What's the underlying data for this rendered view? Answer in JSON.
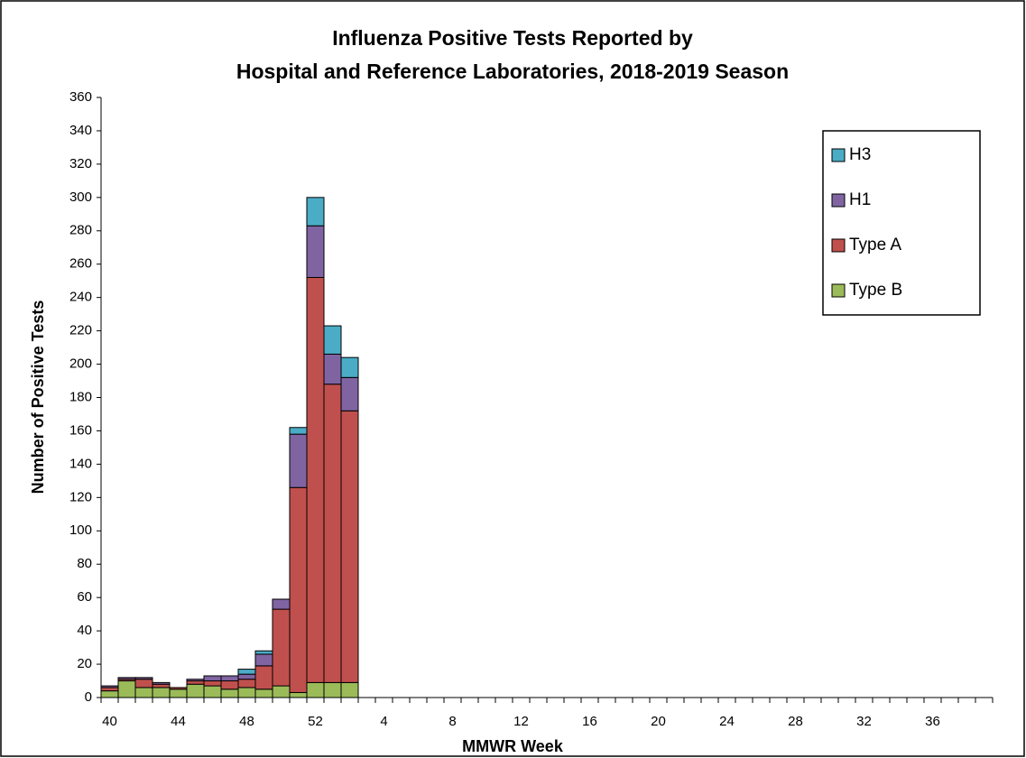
{
  "chart_data": {
    "type": "stacked_bar",
    "title": [
      "Influenza Positive Tests Reported by",
      "Hospital and Reference Laboratories, 2018-2019 Season"
    ],
    "x_label": "MMWR Week",
    "y_label": "Number of Positive Tests",
    "categories": [
      "40",
      null,
      null,
      null,
      "44",
      null,
      null,
      null,
      "48",
      null,
      null,
      null,
      "52",
      null,
      null,
      null,
      "4",
      null,
      null,
      null,
      "8",
      null,
      null,
      null,
      "12",
      null,
      null,
      null,
      "16",
      null,
      null,
      null,
      "20",
      null,
      null,
      null,
      "24",
      null,
      null,
      null,
      "28",
      null,
      null,
      null,
      "32",
      null,
      null,
      null,
      "36",
      null,
      null,
      null
    ],
    "series": [
      {
        "name": "Type B",
        "color": "#9bbb59",
        "values": [
          4,
          10,
          6,
          6,
          5,
          8,
          7,
          5,
          6,
          5,
          7,
          3,
          9,
          9,
          9,
          null,
          null,
          null,
          null,
          null,
          null,
          null,
          null,
          null,
          null,
          null,
          null,
          null,
          null,
          null,
          null,
          null,
          null,
          null,
          null,
          null,
          null,
          null,
          null,
          null,
          null,
          null,
          null,
          null,
          null,
          null,
          null,
          null,
          null,
          null,
          null,
          null
        ]
      },
      {
        "name": "Type A",
        "color": "#c0504d",
        "values": [
          2,
          1,
          5,
          2,
          1,
          2,
          3,
          5,
          5,
          14,
          46,
          123,
          243,
          179,
          163,
          null,
          null,
          null,
          null,
          null,
          null,
          null,
          null,
          null,
          null,
          null,
          null,
          null,
          null,
          null,
          null,
          null,
          null,
          null,
          null,
          null,
          null,
          null,
          null,
          null,
          null,
          null,
          null,
          null,
          null,
          null,
          null,
          null,
          null,
          null,
          null,
          null
        ]
      },
      {
        "name": "H1",
        "color": "#8064a2",
        "values": [
          1,
          1,
          1,
          1,
          0,
          1,
          3,
          3,
          3,
          7,
          6,
          32,
          31,
          18,
          20,
          null,
          null,
          null,
          null,
          null,
          null,
          null,
          null,
          null,
          null,
          null,
          null,
          null,
          null,
          null,
          null,
          null,
          null,
          null,
          null,
          null,
          null,
          null,
          null,
          null,
          null,
          null,
          null,
          null,
          null,
          null,
          null,
          null,
          null,
          null,
          null,
          null
        ]
      },
      {
        "name": "H3",
        "color": "#4bacc6",
        "values": [
          0,
          0,
          0,
          0,
          0,
          0,
          0,
          0,
          3,
          2,
          0,
          4,
          17,
          17,
          12,
          null,
          null,
          null,
          null,
          null,
          null,
          null,
          null,
          null,
          null,
          null,
          null,
          null,
          null,
          null,
          null,
          null,
          null,
          null,
          null,
          null,
          null,
          null,
          null,
          null,
          null,
          null,
          null,
          null,
          null,
          null,
          null,
          null,
          null,
          null,
          null,
          null
        ]
      }
    ],
    "ylim": [
      0,
      360
    ],
    "yticks": [
      0,
      20,
      40,
      60,
      80,
      100,
      120,
      140,
      160,
      180,
      200,
      220,
      240,
      260,
      280,
      300,
      320,
      340,
      360
    ],
    "grid": false,
    "legend": "upper right"
  }
}
